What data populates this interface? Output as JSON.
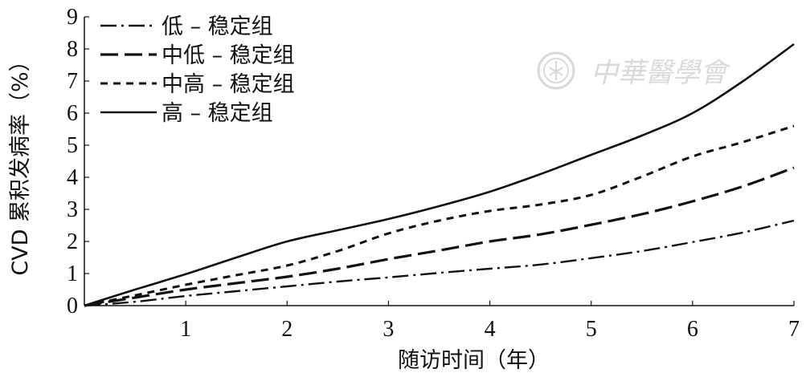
{
  "watermark": {
    "text": "中華醫學會",
    "icon": "chinese-medical-association-seal-icon",
    "color": "#d9d9d9"
  },
  "chart_data": {
    "type": "line",
    "title": "",
    "xlabel": "随访时间（年）",
    "ylabel": "CVD 累积发病率（%）",
    "xlim": [
      0,
      7
    ],
    "ylim": [
      0,
      9
    ],
    "xticks": [
      1,
      2,
      3,
      4,
      5,
      6,
      7
    ],
    "yticks": [
      0,
      1,
      2,
      3,
      4,
      5,
      6,
      7,
      8,
      9
    ],
    "grid": false,
    "legend_position": "top-left",
    "series": [
      {
        "name": "低 – 稳定组",
        "style": "dash-dot",
        "x": [
          0,
          0.5,
          1,
          1.5,
          2,
          2.5,
          3,
          3.5,
          4,
          4.5,
          5,
          5.5,
          6,
          6.5,
          7
        ],
        "y": [
          0,
          0.12,
          0.3,
          0.45,
          0.6,
          0.75,
          0.88,
          1.02,
          1.15,
          1.28,
          1.48,
          1.7,
          1.98,
          2.28,
          2.65
        ]
      },
      {
        "name": "中低 – 稳定组",
        "style": "long-dash",
        "x": [
          0,
          0.5,
          1,
          1.5,
          2,
          2.5,
          3,
          3.5,
          4,
          4.5,
          5,
          5.5,
          6,
          6.5,
          7
        ],
        "y": [
          0,
          0.25,
          0.5,
          0.7,
          0.9,
          1.15,
          1.45,
          1.72,
          2.0,
          2.22,
          2.52,
          2.85,
          3.25,
          3.72,
          4.3
        ]
      },
      {
        "name": "中高 – 稳定组",
        "style": "short-dash",
        "x": [
          0,
          0.5,
          1,
          1.5,
          2,
          2.5,
          3,
          3.5,
          4,
          4.5,
          5,
          5.5,
          6,
          6.5,
          7
        ],
        "y": [
          0,
          0.32,
          0.65,
          0.95,
          1.25,
          1.7,
          2.25,
          2.65,
          2.95,
          3.15,
          3.45,
          4.02,
          4.65,
          5.1,
          5.6
        ]
      },
      {
        "name": "高 – 稳定组",
        "style": "solid",
        "x": [
          0,
          0.5,
          1,
          1.5,
          2,
          2.5,
          3,
          3.5,
          4,
          4.5,
          5,
          5.5,
          6,
          6.5,
          7
        ],
        "y": [
          0,
          0.5,
          0.98,
          1.5,
          2.0,
          2.35,
          2.7,
          3.1,
          3.55,
          4.1,
          4.7,
          5.3,
          6.0,
          7.0,
          8.15
        ]
      }
    ]
  }
}
